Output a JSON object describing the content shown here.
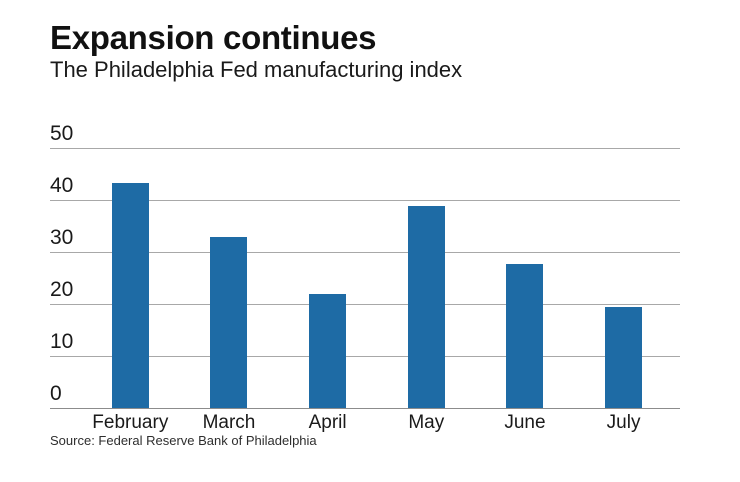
{
  "chart_data": {
    "type": "bar",
    "title": "Expansion continues",
    "subtitle": "The Philadelphia Fed manufacturing index",
    "source": "Source: Federal Reserve Bank of Philadelphia",
    "series_name": "Philadelphia Fed manufacturing index",
    "categories": [
      "February",
      "March",
      "April",
      "May",
      "June",
      "July"
    ],
    "values": [
      43.3,
      32.8,
      22.0,
      38.8,
      27.6,
      19.5
    ],
    "xlabel": "",
    "ylabel": "",
    "ylim": [
      0,
      50
    ],
    "yticks": [
      0,
      10,
      20,
      30,
      40,
      50
    ],
    "grid": true,
    "legend": false,
    "bar_color": "#1e6ba5",
    "gridline_color": "#a8a8a8",
    "baseline_color": "#8c8c8c",
    "text_color": "#1a1a1a"
  }
}
